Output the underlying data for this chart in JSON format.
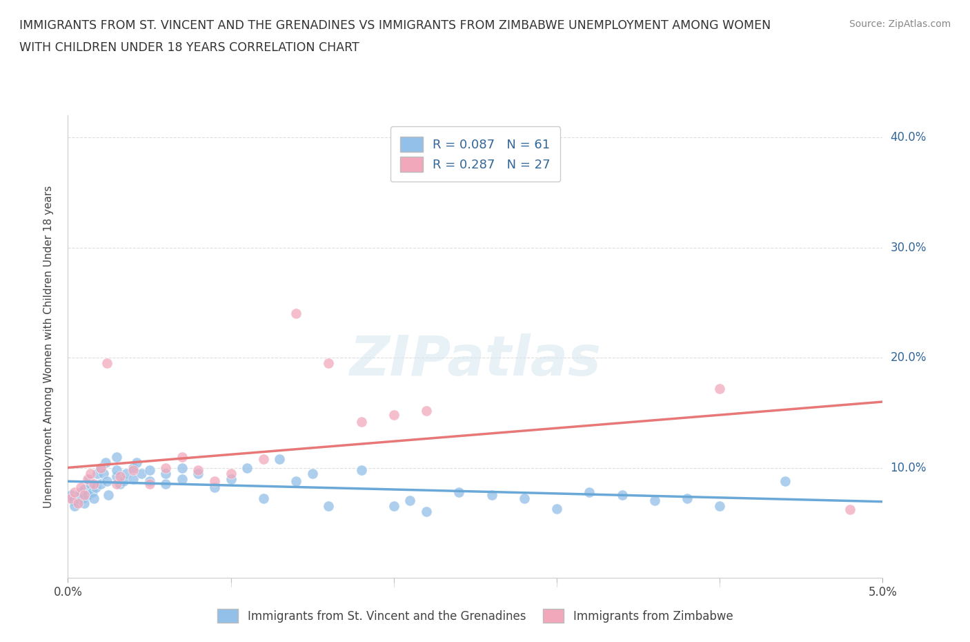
{
  "title_line1": "IMMIGRANTS FROM ST. VINCENT AND THE GRENADINES VS IMMIGRANTS FROM ZIMBABWE UNEMPLOYMENT AMONG WOMEN",
  "title_line2": "WITH CHILDREN UNDER 18 YEARS CORRELATION CHART",
  "source": "Source: ZipAtlas.com",
  "xlabel_label": "Immigrants from St. Vincent and the Grenadines",
  "xlabel_label2": "Immigrants from Zimbabwe",
  "ylabel": "Unemployment Among Women with Children Under 18 years",
  "watermark": "ZIPatlas",
  "xlim": [
    0.0,
    0.05
  ],
  "ylim": [
    0.0,
    0.42
  ],
  "R1": 0.087,
  "N1": 61,
  "R2": 0.287,
  "N2": 27,
  "color1": "#92c0e8",
  "color2": "#f2a8bb",
  "trend_color1": "#6aa8d8",
  "trend_color2": "#e87878",
  "bg_color": "#ffffff",
  "grid_color": "#dddddd",
  "vincent_x": [
    0.0002,
    0.0003,
    0.0004,
    0.0006,
    0.0007,
    0.0008,
    0.0009,
    0.001,
    0.001,
    0.0012,
    0.0013,
    0.0014,
    0.0015,
    0.0016,
    0.0017,
    0.0018,
    0.002,
    0.002,
    0.0022,
    0.0023,
    0.0024,
    0.0025,
    0.003,
    0.003,
    0.003,
    0.0032,
    0.0034,
    0.0036,
    0.004,
    0.004,
    0.0042,
    0.0045,
    0.005,
    0.005,
    0.006,
    0.006,
    0.007,
    0.007,
    0.008,
    0.009,
    0.01,
    0.011,
    0.012,
    0.013,
    0.014,
    0.015,
    0.016,
    0.018,
    0.02,
    0.021,
    0.022,
    0.024,
    0.026,
    0.028,
    0.03,
    0.032,
    0.034,
    0.036,
    0.038,
    0.04,
    0.044
  ],
  "vincent_y": [
    0.075,
    0.07,
    0.065,
    0.072,
    0.075,
    0.078,
    0.072,
    0.068,
    0.08,
    0.075,
    0.09,
    0.085,
    0.078,
    0.072,
    0.082,
    0.095,
    0.085,
    0.1,
    0.095,
    0.105,
    0.088,
    0.075,
    0.092,
    0.098,
    0.11,
    0.085,
    0.088,
    0.095,
    0.09,
    0.1,
    0.105,
    0.095,
    0.098,
    0.088,
    0.085,
    0.095,
    0.09,
    0.1,
    0.095,
    0.082,
    0.09,
    0.1,
    0.072,
    0.108,
    0.088,
    0.095,
    0.065,
    0.098,
    0.065,
    0.07,
    0.06,
    0.078,
    0.075,
    0.072,
    0.063,
    0.078,
    0.075,
    0.07,
    0.072,
    0.065,
    0.088
  ],
  "zimbabwe_x": [
    0.0002,
    0.0004,
    0.0006,
    0.0008,
    0.001,
    0.0012,
    0.0014,
    0.0016,
    0.002,
    0.0024,
    0.003,
    0.0032,
    0.004,
    0.005,
    0.006,
    0.007,
    0.008,
    0.009,
    0.01,
    0.012,
    0.014,
    0.016,
    0.018,
    0.02,
    0.022,
    0.04,
    0.048
  ],
  "zimbabwe_y": [
    0.072,
    0.078,
    0.068,
    0.082,
    0.075,
    0.09,
    0.095,
    0.085,
    0.1,
    0.195,
    0.085,
    0.092,
    0.098,
    0.085,
    0.1,
    0.11,
    0.098,
    0.088,
    0.095,
    0.108,
    0.24,
    0.195,
    0.142,
    0.148,
    0.152,
    0.172,
    0.062
  ]
}
